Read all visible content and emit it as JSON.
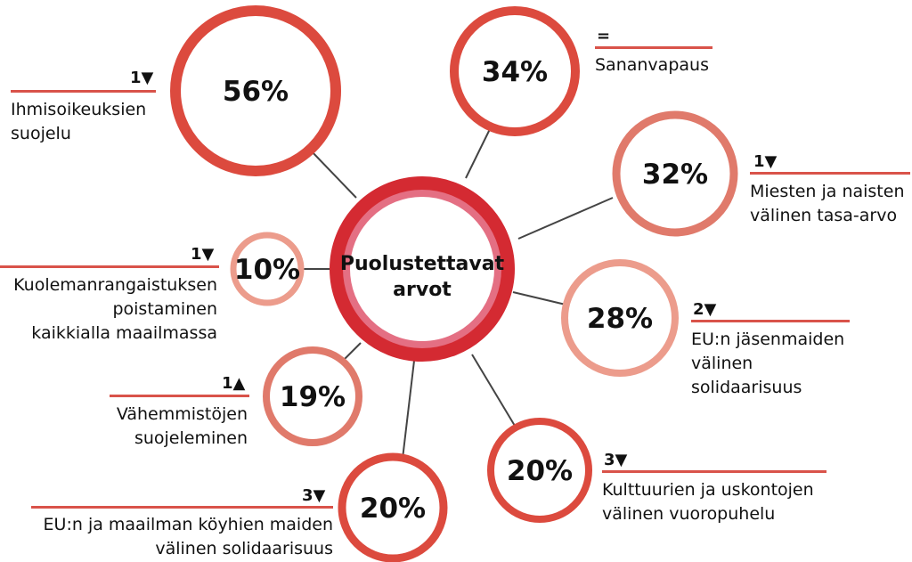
{
  "center": {
    "line1": "Puolustettavat",
    "line2": "arvot"
  },
  "colors": {
    "strong": "#dc4a3e",
    "medium": "#e07a6b",
    "light": "#ec9c8c",
    "center_outer": "#d42a32",
    "center_inner": "#e46f83",
    "connector": "#444444"
  },
  "items": [
    {
      "id": "ihmisoikeudet",
      "percent": "56%",
      "change": "1▼",
      "label": [
        "Ihmisoikeuksien",
        "suojelu"
      ]
    },
    {
      "id": "sananvapaus",
      "percent": "34%",
      "change": "=",
      "label": [
        "Sananvapaus"
      ]
    },
    {
      "id": "tasa-arvo",
      "percent": "32%",
      "change": "1▼",
      "label": [
        "Miesten ja naisten",
        "välinen tasa-arvo"
      ]
    },
    {
      "id": "kuolemanrangaistus",
      "percent": "10%",
      "change": "1▼",
      "label": [
        "Kuolemanrangaistuksen",
        "poistaminen",
        "kaikkialla maailmassa"
      ]
    },
    {
      "id": "eu-solidaarisuus",
      "percent": "28%",
      "change": "2▼",
      "label": [
        "EU:n jäsenmaiden",
        "välinen",
        "solidaarisuus"
      ]
    },
    {
      "id": "vahemmistot",
      "percent": "19%",
      "change": "1▲",
      "label": [
        "Vähemmistöjen",
        "suojeleminen"
      ]
    },
    {
      "id": "kulttuurit",
      "percent": "20%",
      "change": "3▼",
      "label": [
        "Kulttuurien ja uskontojen",
        "välinen vuoropuhelu"
      ]
    },
    {
      "id": "koyhat-maat",
      "percent": "20%",
      "change": "3▼",
      "label": [
        "EU:n ja maailman köyhien maiden",
        "välinen solidaarisuus"
      ]
    }
  ]
}
